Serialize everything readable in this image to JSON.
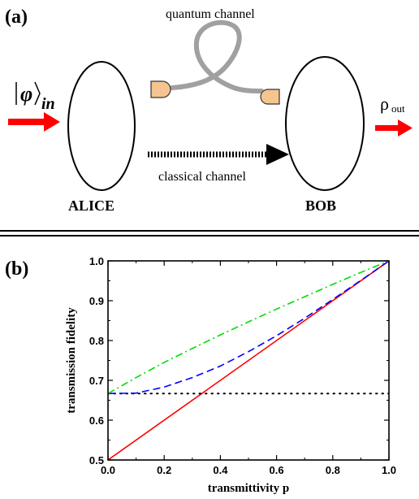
{
  "panel_a": {
    "label": "(a)",
    "quantum_channel_label": "quantum channel",
    "classical_channel_label": "classical channel",
    "alice_label": "ALICE",
    "bob_label": "BOB",
    "input_state": {
      "phi": "φ",
      "sub": "in"
    },
    "output_state": {
      "rho": "ρ",
      "sub": "out"
    },
    "colors": {
      "arrow": "#ff0000",
      "detector": "#f5c48f",
      "fiber": "#a0a0a0"
    }
  },
  "panel_b": {
    "label": "(b)"
  },
  "chart_data": {
    "type": "line",
    "xlabel": "transmittivity p",
    "ylabel": "transmission fidelity",
    "xlim": [
      0.0,
      1.0
    ],
    "ylim": [
      0.5,
      1.0
    ],
    "xticks": [
      "0.0",
      "0.2",
      "0.4",
      "0.6",
      "0.8",
      "1.0"
    ],
    "yticks": [
      "0.5",
      "0.6",
      "0.7",
      "0.8",
      "0.9",
      "1.0"
    ],
    "grid": false,
    "legend": "none",
    "series": [
      {
        "style": "solid",
        "color": "#ff0000",
        "x": [
          0.0,
          1.0
        ],
        "y": [
          0.5,
          1.0
        ]
      },
      {
        "style": "dotted",
        "color": "#000000",
        "x": [
          0.0,
          1.0
        ],
        "y": [
          0.667,
          0.667
        ]
      },
      {
        "style": "dashed",
        "color": "#0000ff",
        "x": [
          0.0,
          0.1,
          0.2,
          0.3,
          0.4,
          0.5,
          0.6,
          0.7,
          0.8,
          0.9,
          1.0
        ],
        "y": [
          0.667,
          0.668,
          0.683,
          0.707,
          0.736,
          0.772,
          0.812,
          0.856,
          0.903,
          0.951,
          1.0
        ]
      },
      {
        "style": "dashdot",
        "color": "#00dd00",
        "x": [
          0.0,
          0.1,
          0.2,
          0.3,
          0.4,
          0.5,
          0.6,
          0.7,
          0.8,
          0.9,
          1.0
        ],
        "y": [
          0.667,
          0.707,
          0.745,
          0.78,
          0.814,
          0.847,
          0.879,
          0.91,
          0.941,
          0.971,
          1.0
        ]
      }
    ]
  }
}
